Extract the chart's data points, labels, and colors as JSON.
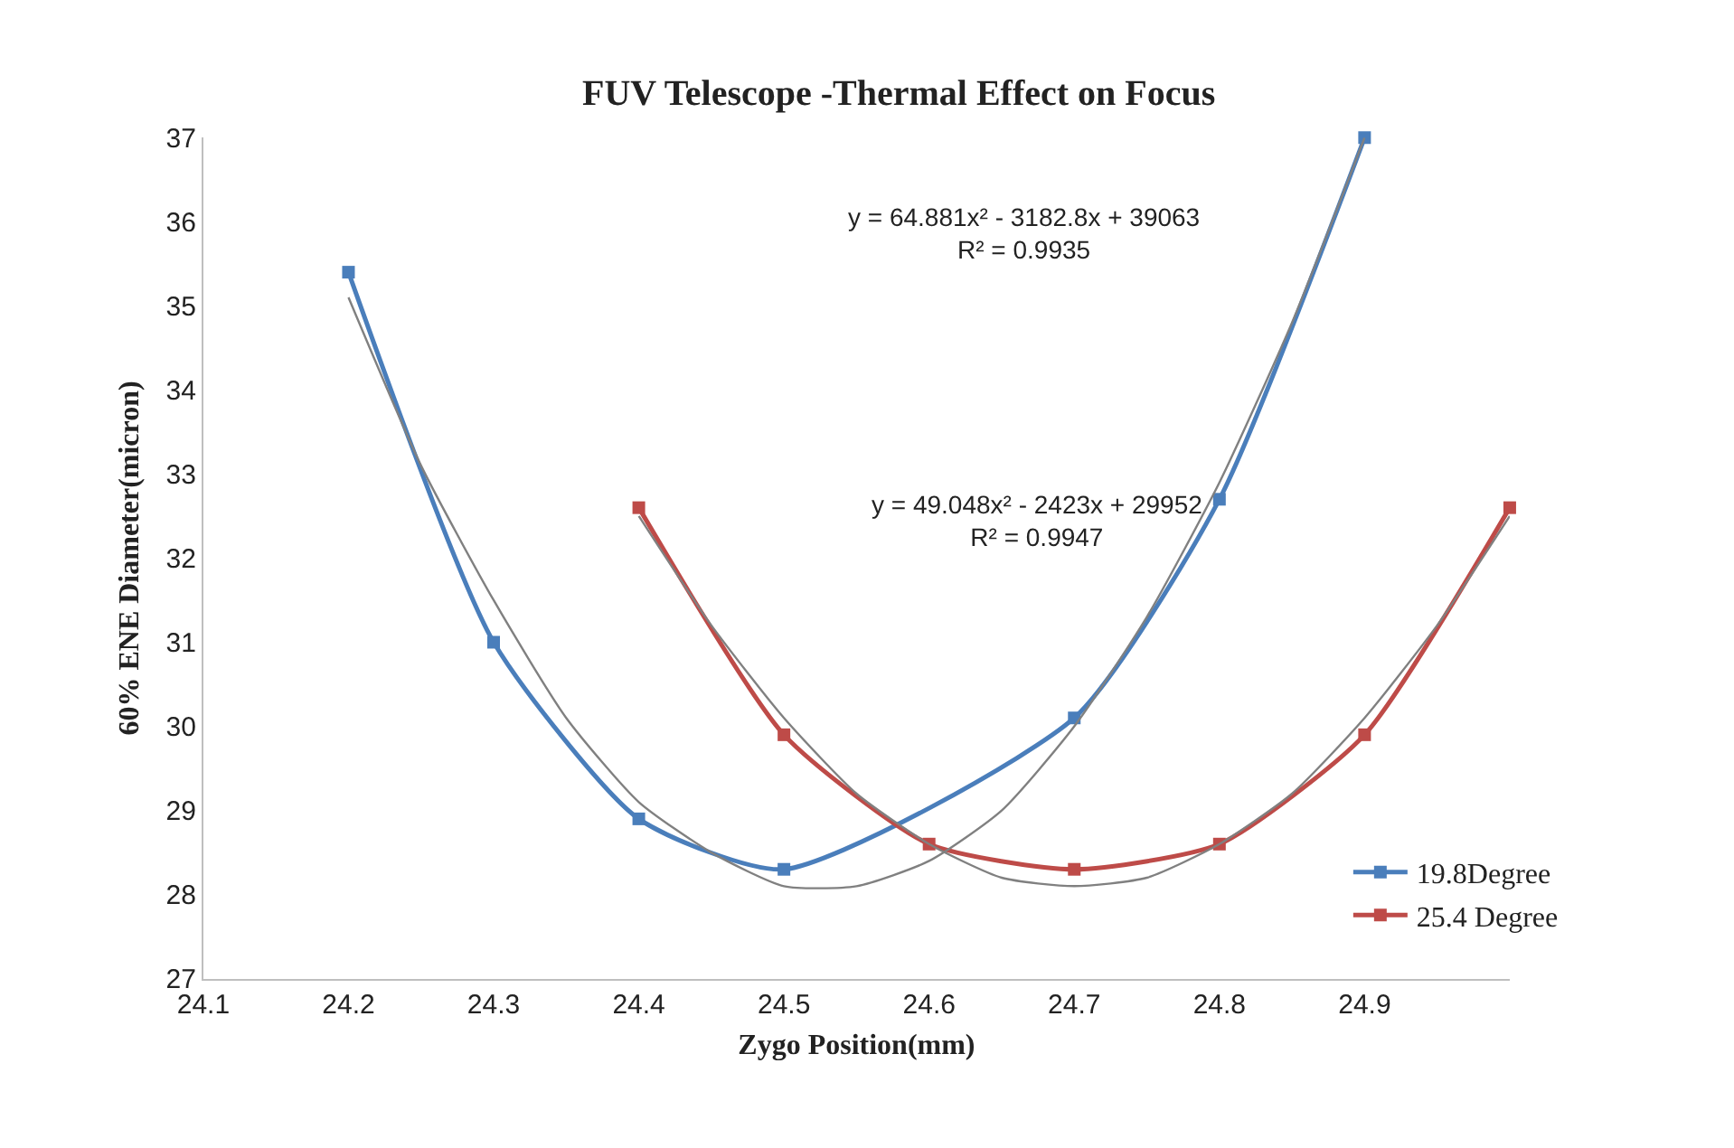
{
  "chart_data": [
    {
      "type": "line",
      "title": "FUV Telescope -Thermal Effect on Focus",
      "xlabel": "Zygo Position(mm)",
      "ylabel": "60% ENE Diameter(micron)",
      "annotations": [
        "y = 64.881x² - 3182.8x + 39063\nR² = 0.9935",
        "y = 49.048x² - 2423x + 29952\nR² = 0.9947"
      ],
      "x": [
        24.2,
        24.3,
        24.4,
        24.5,
        24.6,
        24.7,
        24.8,
        24.9
      ],
      "series": [
        {
          "name": "19.8Degree",
          "color": "#4a7ebb",
          "values": [
            35.4,
            31.0,
            28.9,
            28.3,
            null,
            30.1,
            32.7,
            37.0
          ]
        },
        {
          "name": "25.4 Degree",
          "color": "#be4b48",
          "x": [
            24.4,
            24.5,
            24.6,
            24.7,
            24.8,
            24.9,
            25.0
          ],
          "values": [
            32.6,
            29.9,
            28.6,
            28.3,
            28.6,
            29.9,
            32.6
          ]
        },
        {
          "color": "#808080",
          "marker": "none",
          "x": [
            24.2,
            24.25,
            24.3,
            24.35,
            24.4,
            24.45,
            24.5,
            24.55,
            24.6,
            24.65,
            24.7,
            24.75,
            24.8,
            24.85,
            24.9
          ],
          "values": [
            35.1,
            33.1,
            31.5,
            30.1,
            29.1,
            28.5,
            28.1,
            28.1,
            28.4,
            29.0,
            30.0,
            31.3,
            32.9,
            34.8,
            37.0
          ]
        },
        {
          "color": "#808080",
          "marker": "none",
          "x": [
            24.4,
            24.45,
            24.5,
            24.55,
            24.6,
            24.65,
            24.7,
            24.75,
            24.8,
            24.85,
            24.9,
            24.95,
            25.0
          ],
          "values": [
            32.5,
            31.2,
            30.1,
            29.2,
            28.6,
            28.2,
            28.1,
            28.2,
            28.6,
            29.2,
            30.1,
            31.2,
            32.5
          ]
        }
      ],
      "xlim": [
        24.1,
        25.0
      ],
      "xticks": [
        24.1,
        24.2,
        24.3,
        24.4,
        24.5,
        24.6,
        24.7,
        24.8,
        24.9
      ],
      "ylim": [
        27,
        37
      ],
      "yticks": [
        27,
        28,
        29,
        30,
        31,
        32,
        33,
        34,
        35,
        36,
        37
      ],
      "legend": "bottom right",
      "marker": "square",
      "line_style": "solid"
    }
  ]
}
